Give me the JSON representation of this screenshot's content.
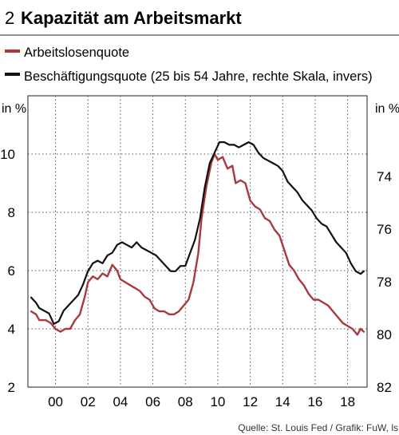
{
  "header": {
    "number": "2",
    "title": "Kapazität am Arbeitsmarkt"
  },
  "source": "Quelle: St. Louis Fed / Grafik: FuW, ls",
  "chart_data": {
    "type": "line",
    "grid": true,
    "x_range": [
      1998.3,
      2019.2
    ],
    "x_ticks": [
      2000,
      2002,
      2004,
      2006,
      2008,
      2010,
      2012,
      2014,
      2016,
      2018
    ],
    "x_tick_labels": [
      "00",
      "02",
      "04",
      "06",
      "08",
      "10",
      "12",
      "14",
      "16",
      "18"
    ],
    "left_axis": {
      "unit": "in %",
      "range": [
        2,
        12
      ],
      "ticks": [
        2,
        4,
        6,
        8,
        10
      ],
      "tick_labels": [
        "2",
        "4",
        "6",
        "8",
        "10"
      ]
    },
    "right_axis": {
      "unit": "in %",
      "inverted": true,
      "range": [
        70.94,
        82
      ],
      "ticks": [
        74,
        76,
        78,
        80,
        82
      ],
      "tick_labels": [
        "74",
        "76",
        "78",
        "80",
        "82"
      ]
    },
    "series": [
      {
        "name": "Arbeitslosenquote",
        "axis": "left",
        "color": "#a83a3e",
        "points": [
          [
            1998.5,
            4.6
          ],
          [
            1998.8,
            4.5
          ],
          [
            1999.0,
            4.3
          ],
          [
            1999.4,
            4.3
          ],
          [
            1999.7,
            4.2
          ],
          [
            2000.0,
            4.0
          ],
          [
            2000.3,
            3.9
          ],
          [
            2000.6,
            4.0
          ],
          [
            2000.9,
            4.0
          ],
          [
            2001.2,
            4.3
          ],
          [
            2001.5,
            4.5
          ],
          [
            2001.8,
            5.1
          ],
          [
            2002.0,
            5.6
          ],
          [
            2002.3,
            5.8
          ],
          [
            2002.6,
            5.7
          ],
          [
            2002.9,
            5.9
          ],
          [
            2003.2,
            5.8
          ],
          [
            2003.5,
            6.2
          ],
          [
            2003.8,
            6.0
          ],
          [
            2004.0,
            5.7
          ],
          [
            2004.3,
            5.6
          ],
          [
            2004.6,
            5.5
          ],
          [
            2004.9,
            5.4
          ],
          [
            2005.2,
            5.3
          ],
          [
            2005.5,
            5.1
          ],
          [
            2005.8,
            5.0
          ],
          [
            2006.1,
            4.7
          ],
          [
            2006.4,
            4.6
          ],
          [
            2006.7,
            4.6
          ],
          [
            2007.0,
            4.5
          ],
          [
            2007.3,
            4.5
          ],
          [
            2007.6,
            4.6
          ],
          [
            2007.9,
            4.8
          ],
          [
            2008.2,
            5.0
          ],
          [
            2008.5,
            5.6
          ],
          [
            2008.8,
            6.6
          ],
          [
            2009.0,
            7.8
          ],
          [
            2009.3,
            8.9
          ],
          [
            2009.6,
            9.7
          ],
          [
            2009.8,
            10.0
          ],
          [
            2010.0,
            9.8
          ],
          [
            2010.3,
            9.9
          ],
          [
            2010.6,
            9.5
          ],
          [
            2010.9,
            9.6
          ],
          [
            2011.1,
            9.0
          ],
          [
            2011.4,
            9.1
          ],
          [
            2011.7,
            9.0
          ],
          [
            2012.0,
            8.4
          ],
          [
            2012.3,
            8.2
          ],
          [
            2012.6,
            8.1
          ],
          [
            2012.9,
            7.8
          ],
          [
            2013.2,
            7.7
          ],
          [
            2013.5,
            7.4
          ],
          [
            2013.8,
            7.2
          ],
          [
            2014.1,
            6.7
          ],
          [
            2014.4,
            6.2
          ],
          [
            2014.7,
            6.0
          ],
          [
            2015.0,
            5.7
          ],
          [
            2015.3,
            5.5
          ],
          [
            2015.6,
            5.2
          ],
          [
            2015.9,
            5.0
          ],
          [
            2016.2,
            5.0
          ],
          [
            2016.5,
            4.9
          ],
          [
            2016.8,
            4.8
          ],
          [
            2017.1,
            4.6
          ],
          [
            2017.4,
            4.4
          ],
          [
            2017.7,
            4.2
          ],
          [
            2018.0,
            4.1
          ],
          [
            2018.3,
            4.0
          ],
          [
            2018.6,
            3.8
          ],
          [
            2018.8,
            4.0
          ],
          [
            2019.0,
            3.9
          ]
        ]
      },
      {
        "name": "Beschäftigungsquote (25 bis 54 Jahre, rechte Skala, invers)",
        "axis": "right",
        "color": "#111111",
        "points": [
          [
            1998.5,
            78.6
          ],
          [
            1998.8,
            78.8
          ],
          [
            1999.0,
            79.0
          ],
          [
            1999.3,
            79.1
          ],
          [
            1999.6,
            79.2
          ],
          [
            1999.9,
            79.6
          ],
          [
            2000.2,
            79.5
          ],
          [
            2000.5,
            79.1
          ],
          [
            2000.8,
            78.9
          ],
          [
            2001.1,
            78.7
          ],
          [
            2001.4,
            78.5
          ],
          [
            2001.7,
            78.1
          ],
          [
            2002.0,
            77.6
          ],
          [
            2002.3,
            77.3
          ],
          [
            2002.6,
            77.2
          ],
          [
            2002.9,
            77.3
          ],
          [
            2003.2,
            77.0
          ],
          [
            2003.5,
            76.9
          ],
          [
            2003.8,
            76.6
          ],
          [
            2004.1,
            76.5
          ],
          [
            2004.4,
            76.6
          ],
          [
            2004.7,
            76.7
          ],
          [
            2005.0,
            76.5
          ],
          [
            2005.3,
            76.7
          ],
          [
            2005.6,
            76.8
          ],
          [
            2005.9,
            76.9
          ],
          [
            2006.2,
            77.0
          ],
          [
            2006.5,
            77.2
          ],
          [
            2006.8,
            77.4
          ],
          [
            2007.1,
            77.6
          ],
          [
            2007.4,
            77.6
          ],
          [
            2007.7,
            77.4
          ],
          [
            2008.0,
            77.4
          ],
          [
            2008.3,
            76.9
          ],
          [
            2008.6,
            76.4
          ],
          [
            2008.9,
            75.6
          ],
          [
            2009.2,
            74.4
          ],
          [
            2009.5,
            73.5
          ],
          [
            2009.8,
            73.1
          ],
          [
            2010.1,
            72.7
          ],
          [
            2010.4,
            72.7
          ],
          [
            2010.7,
            72.8
          ],
          [
            2011.0,
            72.8
          ],
          [
            2011.3,
            72.9
          ],
          [
            2011.6,
            72.8
          ],
          [
            2011.9,
            72.7
          ],
          [
            2012.2,
            72.8
          ],
          [
            2012.5,
            73.1
          ],
          [
            2012.8,
            73.3
          ],
          [
            2013.1,
            73.4
          ],
          [
            2013.4,
            73.5
          ],
          [
            2013.7,
            73.6
          ],
          [
            2014.0,
            73.8
          ],
          [
            2014.3,
            74.2
          ],
          [
            2014.6,
            74.4
          ],
          [
            2014.9,
            74.6
          ],
          [
            2015.2,
            74.9
          ],
          [
            2015.5,
            75.1
          ],
          [
            2015.8,
            75.3
          ],
          [
            2016.1,
            75.6
          ],
          [
            2016.4,
            75.8
          ],
          [
            2016.7,
            75.9
          ],
          [
            2017.0,
            76.2
          ],
          [
            2017.3,
            76.5
          ],
          [
            2017.6,
            76.7
          ],
          [
            2017.9,
            76.9
          ],
          [
            2018.2,
            77.3
          ],
          [
            2018.5,
            77.6
          ],
          [
            2018.8,
            77.7
          ],
          [
            2019.0,
            77.6
          ]
        ]
      }
    ]
  }
}
